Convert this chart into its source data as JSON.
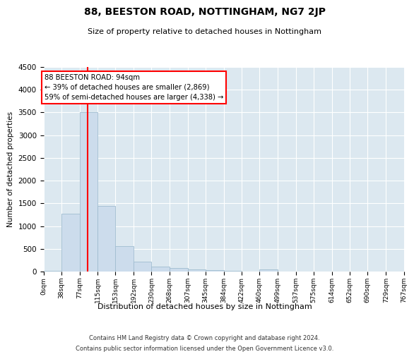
{
  "title": "88, BEESTON ROAD, NOTTINGHAM, NG7 2JP",
  "subtitle": "Size of property relative to detached houses in Nottingham",
  "xlabel": "Distribution of detached houses by size in Nottingham",
  "ylabel": "Number of detached properties",
  "bar_color": "#ccdcec",
  "bar_edge_color": "#a0bcd0",
  "background_color": "#dce8f0",
  "grid_color": "#ffffff",
  "red_line_x": 94,
  "annotation_title": "88 BEESTON ROAD: 94sqm",
  "annotation_line1": "← 39% of detached houses are smaller (2,869)",
  "annotation_line2": "59% of semi-detached houses are larger (4,338) →",
  "footer_line1": "Contains HM Land Registry data © Crown copyright and database right 2024.",
  "footer_line2": "Contains public sector information licensed under the Open Government Licence v3.0.",
  "bin_edges": [
    0,
    38,
    77,
    115,
    153,
    192,
    230,
    268,
    307,
    345,
    384,
    422,
    460,
    499,
    537,
    575,
    614,
    652,
    690,
    729,
    767
  ],
  "bin_heights": [
    20,
    1270,
    3510,
    1450,
    560,
    220,
    110,
    75,
    50,
    30,
    10,
    5,
    50,
    5,
    0,
    0,
    0,
    0,
    0,
    0
  ],
  "ylim": [
    0,
    4500
  ],
  "yticks": [
    0,
    500,
    1000,
    1500,
    2000,
    2500,
    3000,
    3500,
    4000,
    4500
  ],
  "fig_width": 6.0,
  "fig_height": 5.0,
  "dpi": 100
}
